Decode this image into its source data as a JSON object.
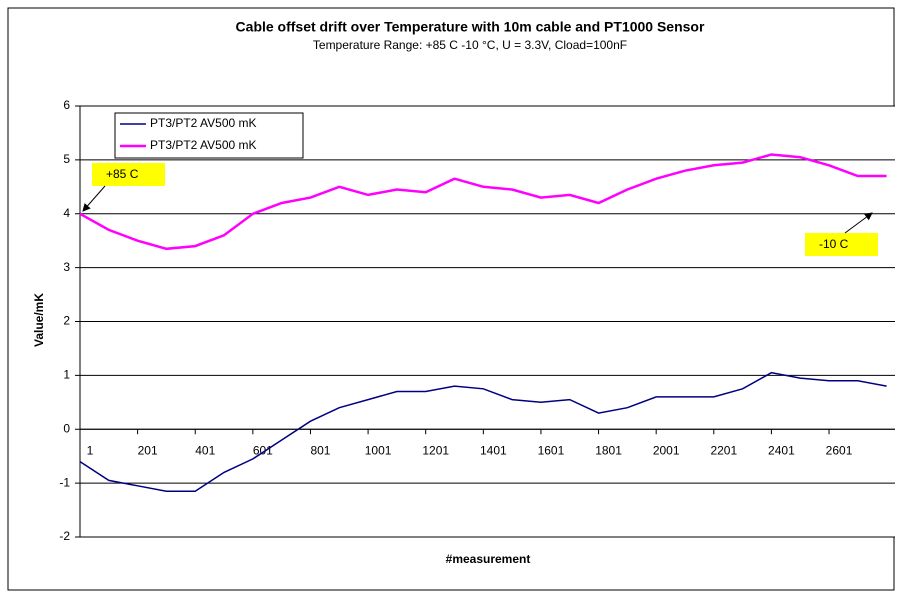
{
  "chart_data": {
    "type": "line",
    "title": "Cable offset drift over Temperature with 10m cable and PT1000 Sensor",
    "subtitle": "Temperature Range: +85 C -10 °C, U = 3.3V, Cload=100nF",
    "y_label": "Value/mK",
    "x_label": "#measurement",
    "annotations": [
      "+85 C",
      "-10 C"
    ],
    "x": [
      1,
      101,
      201,
      301,
      401,
      501,
      601,
      701,
      801,
      901,
      1001,
      1101,
      1201,
      1301,
      1401,
      1501,
      1601,
      1701,
      1801,
      1901,
      2001,
      2101,
      2201,
      2301,
      2401,
      2501,
      2601,
      2701,
      2801
    ],
    "series": [
      {
        "name": "PT3/PT2 AV500 mK",
        "color": "#000080",
        "values": [
          -0.6,
          -0.95,
          -1.05,
          -1.15,
          -1.15,
          -0.8,
          -0.55,
          -0.2,
          0.15,
          0.4,
          0.55,
          0.7,
          0.7,
          0.8,
          0.75,
          0.55,
          0.5,
          0.55,
          0.3,
          0.4,
          0.6,
          0.6,
          0.6,
          0.75,
          1.05,
          0.95,
          0.9,
          0.9,
          0.8
        ]
      },
      {
        "name": "PT3/PT2 AV500 mK",
        "color": "#ff00ff",
        "values": [
          4.0,
          3.7,
          3.5,
          3.35,
          3.4,
          3.6,
          4.0,
          4.2,
          4.3,
          4.5,
          4.35,
          4.45,
          4.4,
          4.65,
          4.5,
          4.45,
          4.3,
          4.35,
          4.2,
          4.45,
          4.65,
          4.8,
          4.9,
          4.95,
          5.1,
          5.05,
          4.9,
          4.7,
          4.7
        ]
      }
    ],
    "xlim": [
      1,
      2830
    ],
    "xticks": [
      1,
      201,
      401,
      601,
      801,
      1001,
      1201,
      1401,
      1601,
      1801,
      2001,
      2201,
      2401,
      2601
    ],
    "ylim": [
      -2,
      6
    ],
    "yticks": [
      -2,
      -1,
      0,
      1,
      2,
      3,
      4,
      5,
      6
    ],
    "grid": true
  }
}
